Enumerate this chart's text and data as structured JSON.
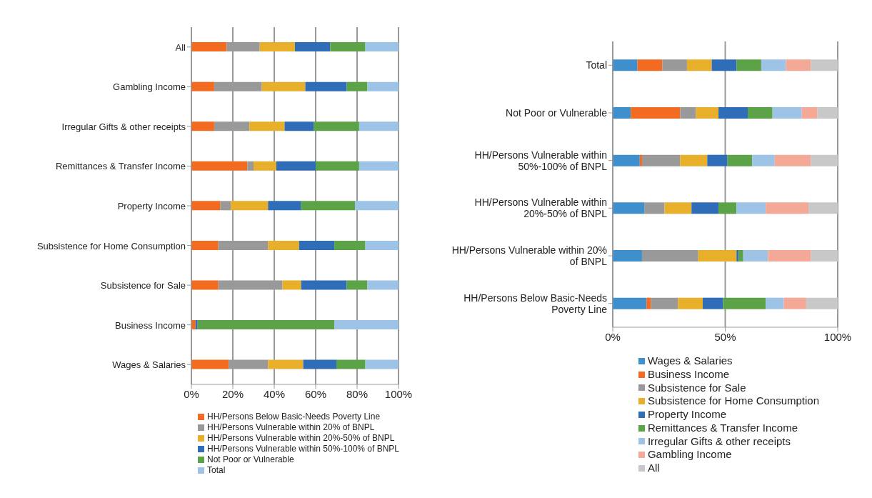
{
  "chart_data": [
    {
      "type": "bar",
      "orientation": "horizontal",
      "stacked": true,
      "grid": "x",
      "legend": "bottom",
      "categories": [
        "All",
        "Gambling Income",
        "Irregular Gifts & other receipts",
        "Remittances & Transfer Income",
        "Property Income",
        "Subsistence for Home Consumption",
        "Subsistence for Sale",
        "Business Income",
        "Wages & Salaries"
      ],
      "xlim": [
        0,
        100
      ],
      "xticks": [
        {
          "value": 0,
          "label": "0%"
        },
        {
          "value": 20,
          "label": "20%"
        },
        {
          "value": 40,
          "label": "40%"
        },
        {
          "value": 60,
          "label": "60%"
        },
        {
          "value": 80,
          "label": "80%"
        },
        {
          "value": 100,
          "label": "100%"
        }
      ],
      "series": [
        {
          "name": "HH/Persons Below Basic-Needs Poverty Line",
          "color": "#f26b21",
          "values": [
            17,
            11,
            11,
            27,
            14,
            13,
            13,
            2,
            18
          ]
        },
        {
          "name": "HH/Persons Vulnerable within 20% of BNPL",
          "color": "#999999",
          "values": [
            16,
            23,
            17,
            3,
            5,
            24,
            31,
            0,
            19
          ]
        },
        {
          "name": "HH/Persons Vulnerable within 20%-50% of BNPL",
          "color": "#e8b02a",
          "values": [
            17,
            21,
            17,
            11,
            18,
            15,
            9,
            0,
            17
          ]
        },
        {
          "name": "HH/Persons Vulnerable within 50%-100% of BNPL",
          "color": "#2f6db8",
          "values": [
            17,
            20,
            14,
            19,
            16,
            17,
            22,
            1,
            16
          ]
        },
        {
          "name": "Not Poor or Vulnerable",
          "color": "#5ba346",
          "values": [
            17,
            10,
            22,
            21,
            26,
            15,
            10,
            66,
            14
          ]
        },
        {
          "name": "Total",
          "color": "#9dc3e6",
          "values": [
            16,
            15,
            19,
            19,
            21,
            16,
            15,
            31,
            16
          ]
        }
      ]
    },
    {
      "type": "bar",
      "orientation": "horizontal",
      "stacked": true,
      "grid": "x",
      "legend": "bottom",
      "categories": [
        "Total",
        "Not Poor or Vulnerable",
        "HH/Persons Vulnerable within 50%-100% of BNPL",
        "HH/Persons Vulnerable within 20%-50% of BNPL",
        "HH/Persons Vulnerable within 20% of BNPL",
        "HH/Persons Below Basic-Needs Poverty Line"
      ],
      "xlim": [
        0,
        100
      ],
      "xticks": [
        {
          "value": 0,
          "label": "0%"
        },
        {
          "value": 50,
          "label": "50%"
        },
        {
          "value": 100,
          "label": "100%"
        }
      ],
      "series": [
        {
          "name": "Wages & Salaries",
          "color": "#3f8fcc",
          "values": [
            11,
            8,
            12,
            14,
            13,
            15
          ]
        },
        {
          "name": "Business Income",
          "color": "#f26b21",
          "values": [
            11,
            22,
            1,
            0,
            0,
            2
          ]
        },
        {
          "name": "Subsistence for Sale",
          "color": "#999999",
          "values": [
            11,
            7,
            17,
            9,
            25,
            12
          ]
        },
        {
          "name": "Subsistence for Home Consumption",
          "color": "#e8b02a",
          "values": [
            11,
            10,
            12,
            12,
            17,
            11
          ]
        },
        {
          "name": "Property Income",
          "color": "#2f6db8",
          "values": [
            11,
            13,
            9,
            12,
            1,
            9
          ]
        },
        {
          "name": "Remittances & Transfer Income",
          "color": "#5ba346",
          "values": [
            11,
            11,
            11,
            8,
            2,
            19
          ]
        },
        {
          "name": "Irregular Gifts & other receipts",
          "color": "#9dc3e6",
          "values": [
            11,
            13,
            10,
            13,
            11,
            8
          ]
        },
        {
          "name": "Gambling Income",
          "color": "#f3a996",
          "values": [
            11,
            7,
            16,
            19,
            19,
            10
          ]
        },
        {
          "name": "All",
          "color": "#c8c8c8",
          "values": [
            12,
            9,
            12,
            13,
            12,
            14
          ]
        }
      ]
    }
  ]
}
